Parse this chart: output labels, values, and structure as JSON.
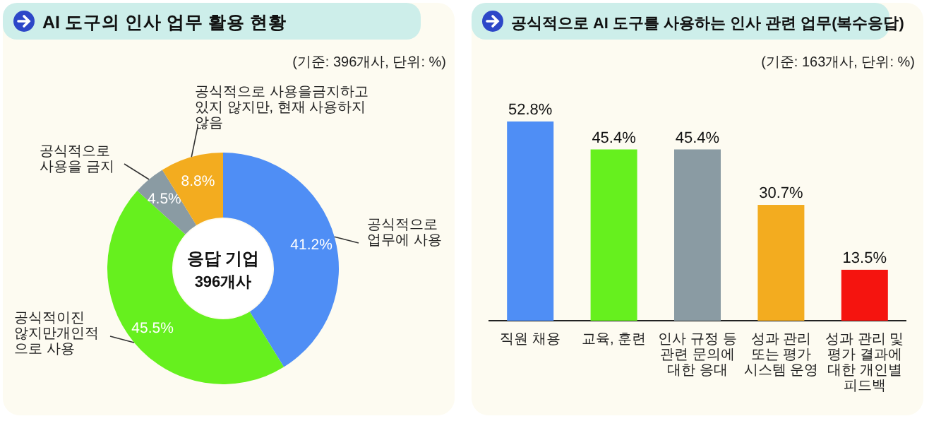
{
  "chart_data": [
    {
      "type": "donut",
      "title": "AI 도구의 인사 업무 활용 현황",
      "subtitle": "(기준: 396개사, 단위: %)",
      "categories": [
        "공식적으로\n업무에 사용",
        "공식적이진\n않지만개인적\n으로 사용",
        "공식적으로\n사용을 금지",
        "공식적으로 사용을금지하고\n있지 않지만, 현재 사용하지\n않음"
      ],
      "values": [
        41.2,
        45.5,
        4.5,
        8.8
      ],
      "colors": [
        "#4f8ef5",
        "#66f01e",
        "#8a9ba3",
        "#f3ac1f"
      ],
      "value_labels": [
        "41.2%",
        "45.5%",
        "4.5%",
        "8.8%"
      ],
      "annotations": [
        "응답 기업",
        "396개사"
      ]
    },
    {
      "type": "bar",
      "title": "공식적으로 AI 도구를 사용하는 인사 관련 업무(복수응답)",
      "subtitle": "(기준: 163개사, 단위: %)",
      "categories": [
        "직원 채용",
        "교육, 훈련",
        "인사 규정 등\n관련 문의에\n대한 응대",
        "성과 관리\n또는 평가\n시스템 운영",
        "성과 관리 및\n평가 결과에\n대한 개인별\n피드백"
      ],
      "values": [
        52.8,
        45.4,
        45.4,
        30.7,
        13.5
      ],
      "colors": [
        "#4f8ef5",
        "#66f01e",
        "#8a9ba3",
        "#f3ac1f",
        "#f5140f"
      ],
      "value_labels": [
        "52.8%",
        "45.4%",
        "45.4%",
        "30.7%",
        "13.5%"
      ]
    }
  ]
}
